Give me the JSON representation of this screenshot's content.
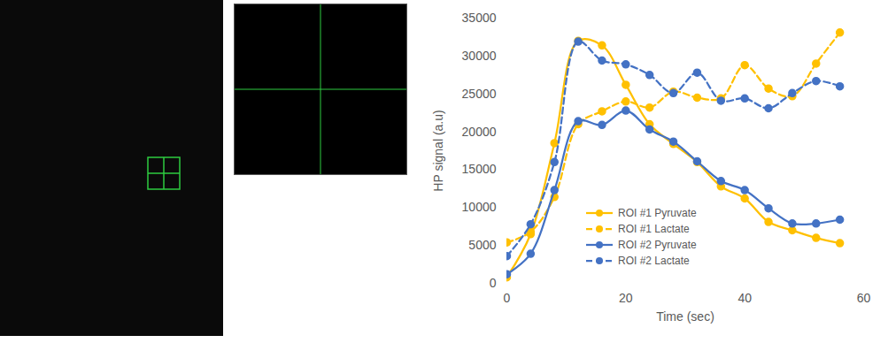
{
  "chart_data": {
    "type": "line",
    "xlabel": "Time (sec)",
    "ylabel": "HP signal (a.u)",
    "x": [
      0,
      4,
      8,
      12,
      16,
      20,
      24,
      28,
      32,
      36,
      40,
      44,
      48,
      52,
      56
    ],
    "series": [
      {
        "name": "ROI #1 Pyruvate",
        "color": "#FFC000",
        "line_style": "solid",
        "marker": "circle",
        "values": [
          800,
          6500,
          18500,
          32000,
          31400,
          26200,
          21000,
          18400,
          16000,
          12800,
          11200,
          8100,
          7000,
          6000,
          5300
        ]
      },
      {
        "name": "ROI #1 Lactate",
        "color": "#FFC000",
        "line_style": "dashed",
        "marker": "circle",
        "values": [
          5400,
          6800,
          11400,
          21000,
          22700,
          24000,
          23200,
          25300,
          24500,
          24400,
          28800,
          25700,
          24700,
          29000,
          33100
        ]
      },
      {
        "name": "ROI #2 Pyruvate",
        "color": "#4472C4",
        "line_style": "solid",
        "marker": "circle",
        "values": [
          1200,
          3900,
          12300,
          21400,
          20900,
          22800,
          20300,
          18700,
          16100,
          13500,
          12300,
          9900,
          7900,
          7900,
          8400
        ]
      },
      {
        "name": "ROI #2 Lactate",
        "color": "#4472C4",
        "line_style": "dashed",
        "marker": "circle",
        "values": [
          3600,
          7800,
          16000,
          31900,
          29400,
          28900,
          27500,
          25100,
          27800,
          24100,
          24400,
          23100,
          25100,
          26700,
          26000
        ]
      }
    ],
    "xlim": [
      0,
      60
    ],
    "xticks": [
      0,
      20,
      40,
      60
    ],
    "ylim": [
      0,
      35000
    ],
    "yticks": [
      0,
      5000,
      10000,
      15000,
      20000,
      25000,
      30000,
      35000
    ],
    "grid": false,
    "legend": "bottom"
  }
}
